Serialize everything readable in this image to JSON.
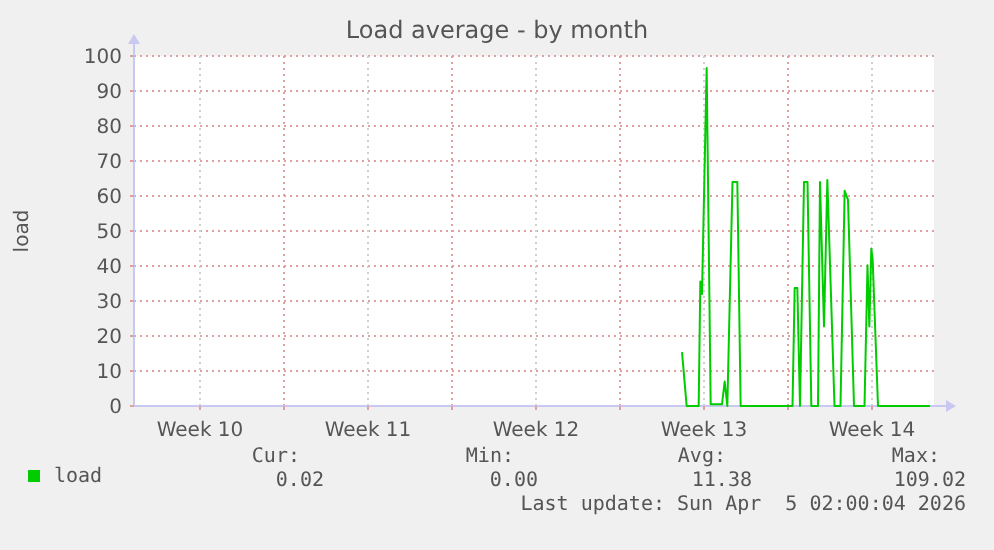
{
  "chart_data": {
    "type": "line",
    "title": "Load average - by month",
    "ylabel": "load",
    "x": [
      "2026-03-25T14:00",
      "2026-03-25T18:40",
      "2026-03-26T06:40",
      "2026-03-26T08:20",
      "2026-03-26T10:00",
      "2026-03-26T14:40",
      "2026-03-26T18:40",
      "2026-03-27T06:00",
      "2026-03-27T08:40",
      "2026-03-27T11:20",
      "2026-03-27T16:30",
      "2026-03-27T21:20",
      "2026-03-28T00:40",
      "2026-03-30T04:30",
      "2026-03-30T06:40",
      "2026-03-30T09:20",
      "2026-03-30T12:00",
      "2026-03-30T16:00",
      "2026-03-30T19:30",
      "2026-03-30T23:20",
      "2026-03-31T06:00",
      "2026-03-31T08:00",
      "2026-03-31T12:00",
      "2026-03-31T15:20",
      "2026-03-31T22:30",
      "2026-04-01T04:30",
      "2026-04-01T08:40",
      "2026-04-01T12:00",
      "2026-04-01T18:00",
      "2026-04-02T04:30",
      "2026-04-02T07:30",
      "2026-04-02T09:20",
      "2026-04-02T11:20",
      "2026-04-02T12:40",
      "2026-04-02T18:00",
      "2026-04-04T22:00"
    ],
    "series": [
      {
        "name": "load",
        "color": "#00cc00",
        "values": [
          15.4,
          0,
          0,
          35.6,
          32,
          96.6,
          0.5,
          0.5,
          7,
          0,
          64,
          64,
          0,
          0,
          33.7,
          33.7,
          0,
          64,
          64,
          0,
          0,
          64,
          22.7,
          64.6,
          0,
          0,
          61.5,
          58.9,
          0,
          0,
          40.2,
          22.7,
          45,
          41.8,
          0,
          0
        ]
      }
    ],
    "xlim": [
      "2026-03-02T18:00",
      "2026-04-05T02:00"
    ],
    "xticks": [
      {
        "value": "2026-03-05T12:00",
        "label": "Week 10"
      },
      {
        "value": "2026-03-09T00:00",
        "label": null
      },
      {
        "value": "2026-03-12T12:00",
        "label": "Week 11"
      },
      {
        "value": "2026-03-16T00:00",
        "label": null
      },
      {
        "value": "2026-03-19T12:00",
        "label": "Week 12"
      },
      {
        "value": "2026-03-23T00:00",
        "label": null
      },
      {
        "value": "2026-03-26T12:00",
        "label": "Week 13"
      },
      {
        "value": "2026-03-30T00:00",
        "label": null
      },
      {
        "value": "2026-04-02T12:00",
        "label": "Week 14"
      }
    ],
    "ylim": [
      0,
      100
    ],
    "yticks": [
      0,
      10,
      20,
      30,
      40,
      50,
      60,
      70,
      80,
      90,
      100
    ],
    "grid": true,
    "legend": "bottom",
    "marker": "none",
    "line_style": "solid",
    "annotations": [
      "Cur:",
      "Min:",
      "Avg:",
      "Max:",
      "0.02",
      "0.00",
      "11.38",
      "109.02",
      "Last update: Sun Apr  5 02:00:04 2026"
    ]
  }
}
